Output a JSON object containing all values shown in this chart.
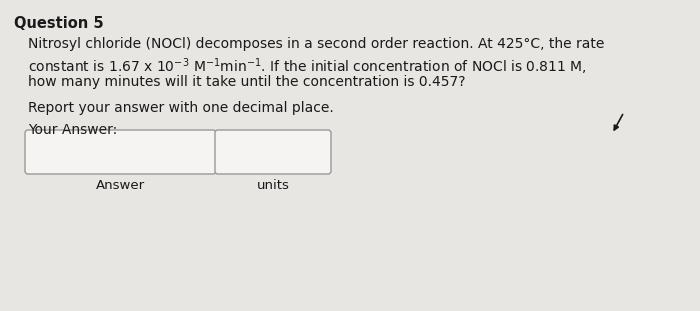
{
  "title": "Question 5",
  "line1": "Nitrosyl chloride (NOCl) decomposes in a second order reaction. At 425°C, the rate",
  "line2_mathtext": "constant is 1.67 x 10$^{-3}$ M$^{-1}$min$^{-1}$. If the initial concentration of NOCl is 0.811 M,",
  "line3": "how many minutes will it take until the concentration is 0.457?",
  "line4": "Report your answer with one decimal place.",
  "line5": "Your Answer:",
  "label1": "Answer",
  "label2": "units",
  "bg_color": "#e8e6e3",
  "text_color": "#1a1a1a",
  "box_facecolor": "#f5f4f2",
  "box_border": "#999999",
  "title_fontsize": 10.5,
  "body_fontsize": 10.0
}
